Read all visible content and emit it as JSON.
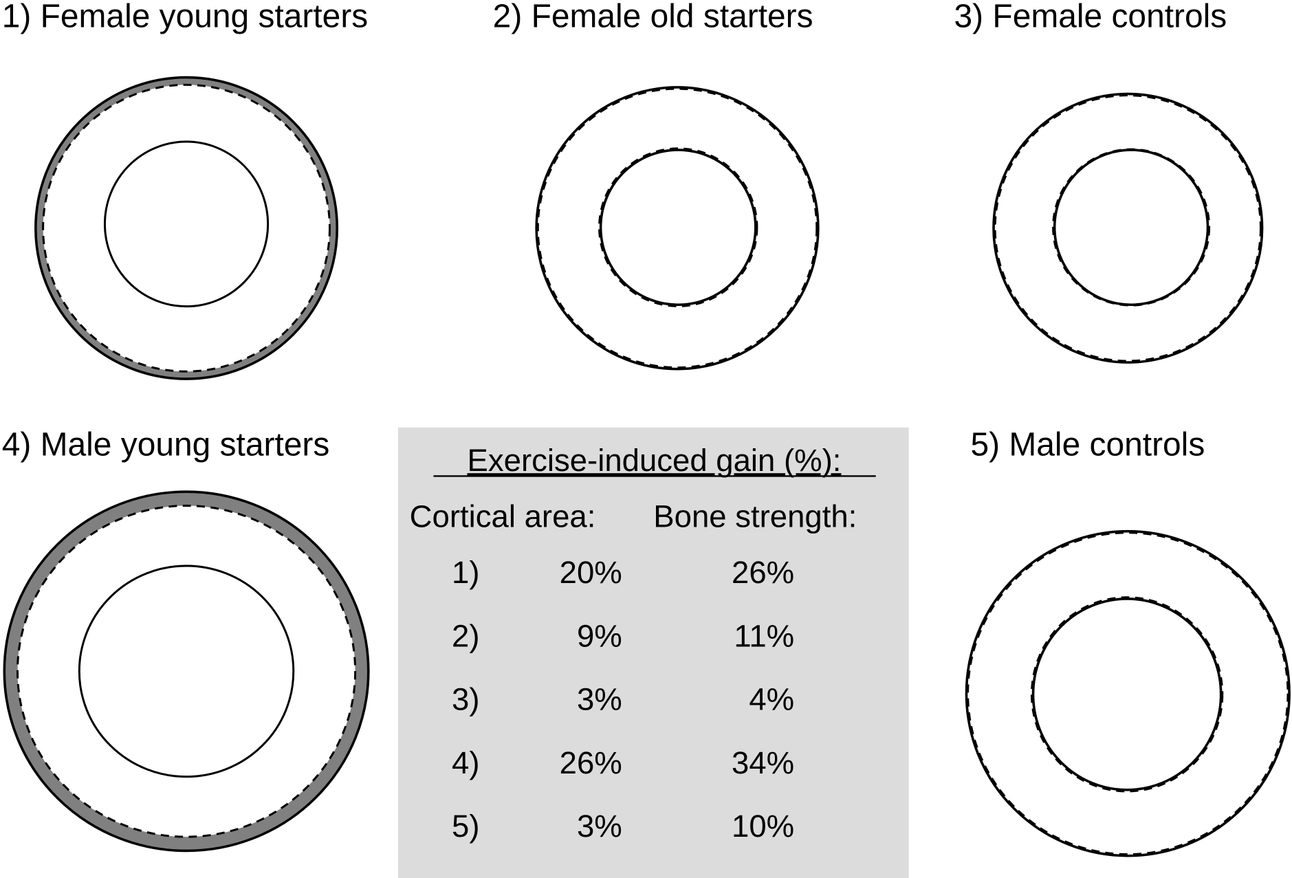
{
  "panels": [
    {
      "label": "1) Female young starters"
    },
    {
      "label": "2) Female old starters"
    },
    {
      "label": "3) Female controls"
    },
    {
      "label": "4) Male young starters"
    },
    {
      "label": "5) Male controls"
    }
  ],
  "table": {
    "title": "Exercise-induced gain (%):",
    "col_cortical": "Cortical area:",
    "col_strength": "Bone strength:",
    "rows": [
      {
        "id": "1)",
        "cortical": "20%",
        "strength": "26%"
      },
      {
        "id": "2)",
        "cortical": "9%",
        "strength": "11%"
      },
      {
        "id": "3)",
        "cortical": "3%",
        "strength": "4%"
      },
      {
        "id": "4)",
        "cortical": "26%",
        "strength": "34%"
      },
      {
        "id": "5)",
        "cortical": "3%",
        "strength": "10%"
      }
    ]
  },
  "colors": {
    "gain_band": "#808080",
    "table_bg": "#dcdcdc"
  }
}
